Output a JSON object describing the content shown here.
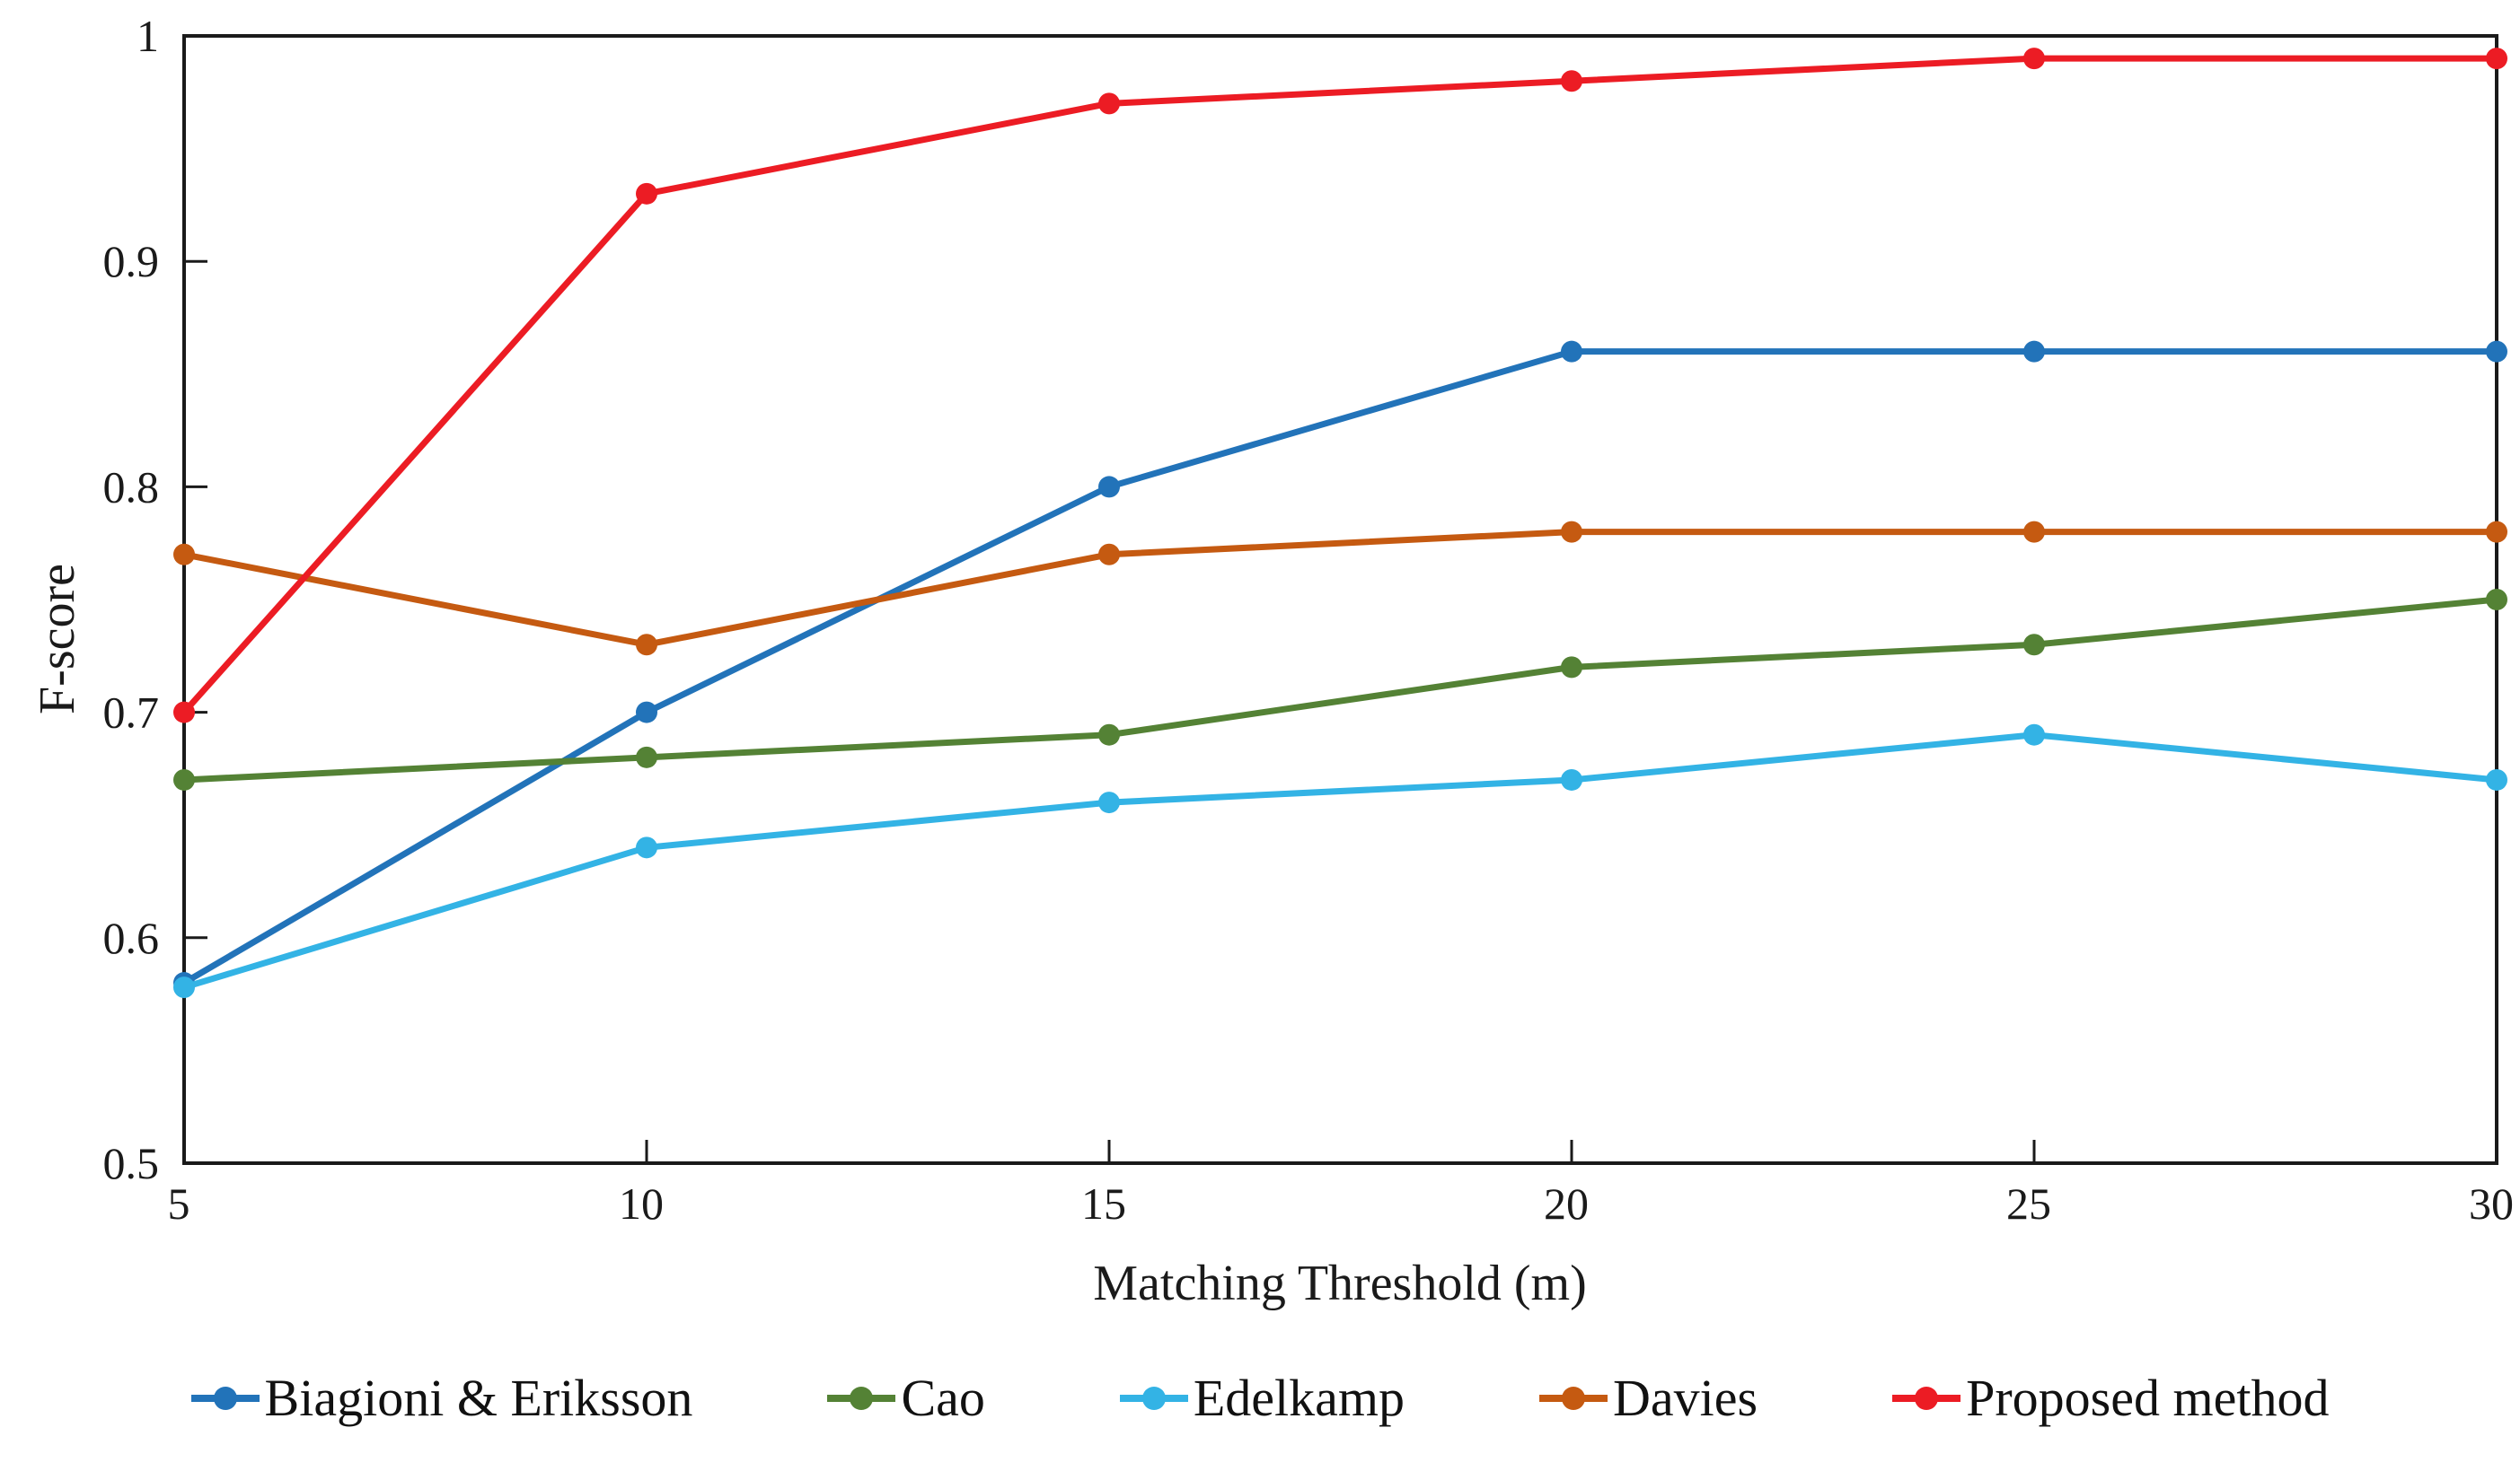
{
  "chart_data": {
    "type": "line",
    "xlabel": "Matching Threshold (m)",
    "ylabel": "F-score",
    "x": [
      5,
      10,
      15,
      20,
      25,
      30
    ],
    "xlim": [
      5,
      30
    ],
    "ylim": [
      0.5,
      1.0
    ],
    "xtick_labels": [
      "5",
      "10",
      "15",
      "20",
      "25",
      "30"
    ],
    "ytick_values": [
      1.0,
      0.9,
      0.8,
      0.7,
      0.6,
      0.5
    ],
    "ytick_labels": [
      "1",
      "0.9",
      "0.8",
      "0.7",
      "0.6",
      "0.5"
    ],
    "grid": false,
    "legend_position": "bottom",
    "axis_color": "#1a1a1a",
    "series": [
      {
        "name": "Biagioni & Eriksson",
        "color": "#2273B9",
        "values": [
          0.58,
          0.7,
          0.8,
          0.86,
          0.86,
          0.86
        ]
      },
      {
        "name": "Cao",
        "color": "#548235",
        "values": [
          0.67,
          0.68,
          0.69,
          0.72,
          0.73,
          0.75
        ]
      },
      {
        "name": "Edelkamp",
        "color": "#33B3E5",
        "values": [
          0.578,
          0.64,
          0.66,
          0.67,
          0.69,
          0.67
        ]
      },
      {
        "name": "Davies",
        "color": "#C55A11",
        "values": [
          0.77,
          0.73,
          0.77,
          0.78,
          0.78,
          0.78
        ]
      },
      {
        "name": "Proposed method",
        "color": "#EC1C24",
        "values": [
          0.7,
          0.93,
          0.97,
          0.98,
          0.99,
          0.99
        ]
      }
    ]
  }
}
